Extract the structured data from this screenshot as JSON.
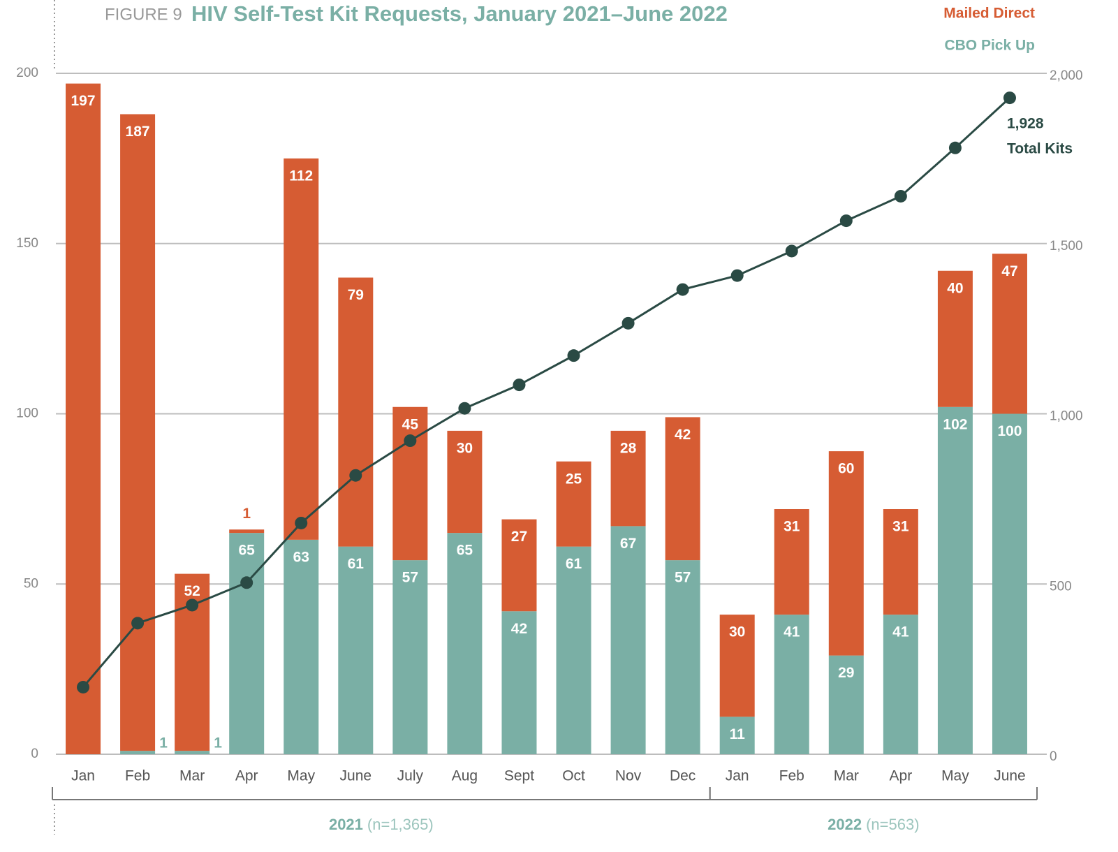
{
  "chart_data": {
    "type": "stacked_bar_line",
    "figure_label": "FIGURE 9",
    "title": "HIV Self-Test Kit Requests, January 2021–June 2022",
    "categories": [
      "Jan",
      "Feb",
      "Mar",
      "Apr",
      "May",
      "June",
      "July",
      "Aug",
      "Sept",
      "Oct",
      "Nov",
      "Dec",
      "Jan",
      "Feb",
      "Mar",
      "Apr",
      "May",
      "June"
    ],
    "series": [
      {
        "name": "CBO Pick Up",
        "color": "#7aafa5",
        "values": [
          null,
          1,
          1,
          65,
          63,
          61,
          57,
          65,
          42,
          61,
          67,
          57,
          11,
          41,
          29,
          41,
          102,
          100
        ]
      },
      {
        "name": "Mailed Direct",
        "color": "#d65c33",
        "values": [
          197,
          187,
          52,
          1,
          112,
          79,
          45,
          30,
          27,
          25,
          28,
          42,
          30,
          31,
          60,
          31,
          40,
          47
        ]
      },
      {
        "type": "line",
        "axis": "y2",
        "color": "#2a4a44",
        "values": [
          197,
          385,
          438,
          504,
          679,
          819,
          921,
          1016,
          1085,
          1171,
          1266,
          1365,
          1406,
          1478,
          1567,
          1639,
          1781,
          1928
        ],
        "value_labels": [
          null,
          null,
          null,
          null,
          null,
          null,
          null,
          null,
          null,
          null,
          null,
          null,
          null,
          null,
          null,
          null,
          null,
          "1,928"
        ]
      }
    ],
    "annotation": "Total Kits",
    "groups": [
      {
        "label": "2021",
        "note": "(n=1,365)",
        "span": 12
      },
      {
        "label": "2022",
        "note": "(n=563)",
        "span": 6
      }
    ],
    "ylim": [
      0,
      200
    ],
    "yticks": [
      0,
      50,
      100,
      150,
      200
    ],
    "y2lim": [
      0,
      2000
    ],
    "y2ticks": [
      0,
      500,
      {
        "value": 1000,
        "label": "1,000"
      },
      {
        "value": 1500,
        "label": "1,500"
      },
      {
        "value": 2000,
        "label": "2,000"
      }
    ],
    "grid": true,
    "legend": "top-right"
  }
}
